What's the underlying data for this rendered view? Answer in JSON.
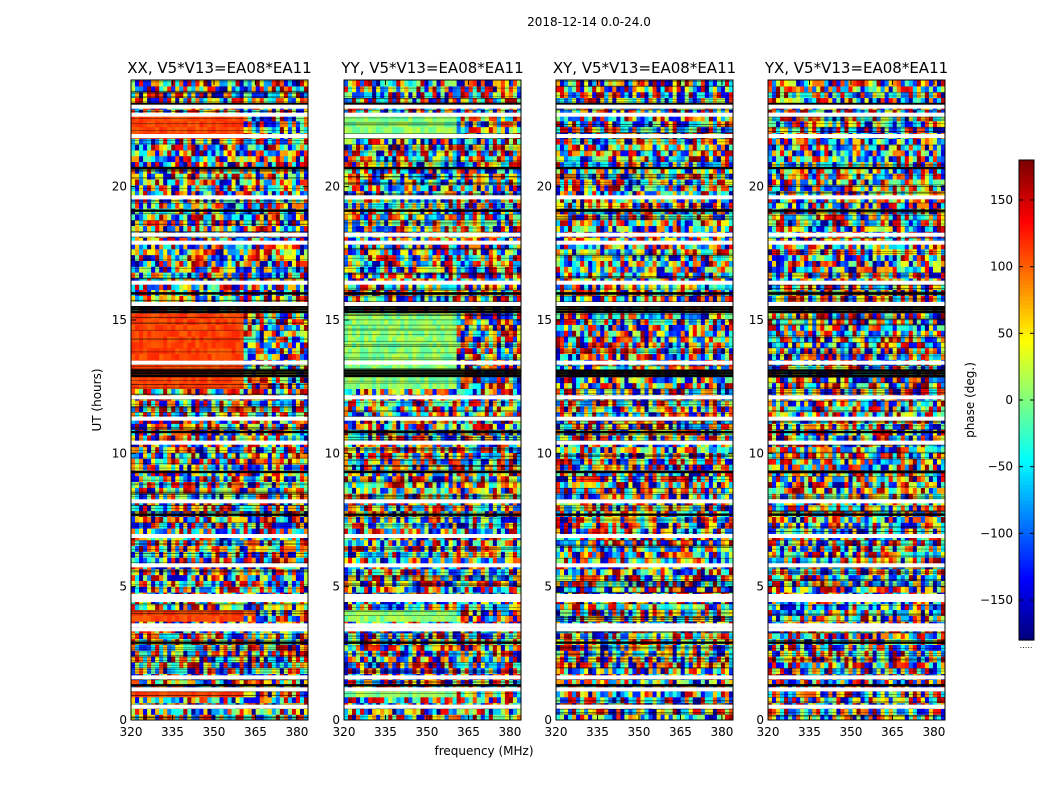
{
  "chart_data": {
    "type": "heatmap",
    "title": "2018-12-14 0.0-24.0",
    "xlabel": "frequency (MHz)",
    "ylabel": "UT (hours)",
    "xlim": [
      320,
      384
    ],
    "ylim": [
      0,
      24
    ],
    "x_ticks": [
      "320",
      "335",
      "350",
      "365",
      "380"
    ],
    "y_ticks": [
      "0",
      "5",
      "10",
      "15",
      "20"
    ],
    "colormap": "jet",
    "colorbar": {
      "label": "phase (deg.)",
      "range": [
        -180,
        180
      ],
      "ticks": [
        "150",
        "100",
        "50",
        "0",
        "−50",
        "−100",
        "−150"
      ],
      "note": "....."
    },
    "panels": [
      {
        "name": "XX, V5*V13=EA08*EA11",
        "dominant_color": "#ff7a00"
      },
      {
        "name": "YY, V5*V13=EA08*EA11",
        "dominant_color": "#66ff99"
      },
      {
        "name": "XY, V5*V13=EA08*EA11",
        "dominant_color": "noise"
      },
      {
        "name": "YX, V5*V13=EA08*EA11",
        "dominant_color": "noise"
      }
    ]
  }
}
